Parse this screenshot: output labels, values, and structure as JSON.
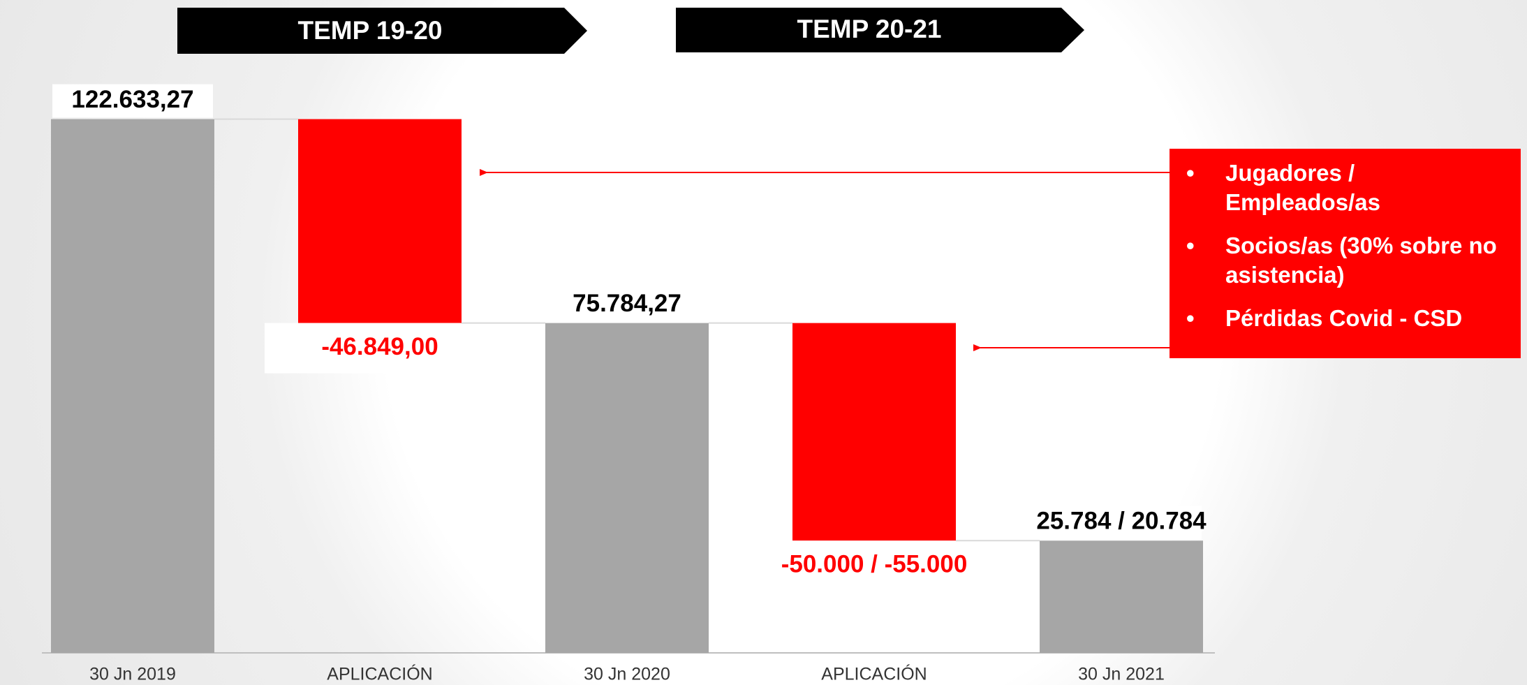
{
  "chart_data": {
    "type": "waterfall",
    "categories": [
      "30 Jn 2019",
      "APLICACIÓN",
      "30 Jn 2020",
      "APLICACIÓN",
      "30 Jn 2021"
    ],
    "values": [
      122633.27,
      -46849,
      75784.27,
      -50000,
      25784
    ],
    "value_labels": [
      "122.633,27",
      "-46.849,00",
      "75.784,27",
      "-50.000 / -55.000",
      "25.784  / 20.784"
    ],
    "bar_kinds": [
      "total",
      "change",
      "total",
      "change",
      "total"
    ],
    "total_color": "#a6a6a6",
    "decrease_color": "#ff0000",
    "ylim": [
      0,
      150000
    ],
    "annotations": [
      "TEMP 19-20",
      "TEMP 20-21"
    ],
    "callout": [
      "Jugadores / Empleados/as",
      "Socios/as (30% sobre no asistencia)",
      "Pérdidas Covid - CSD"
    ]
  }
}
